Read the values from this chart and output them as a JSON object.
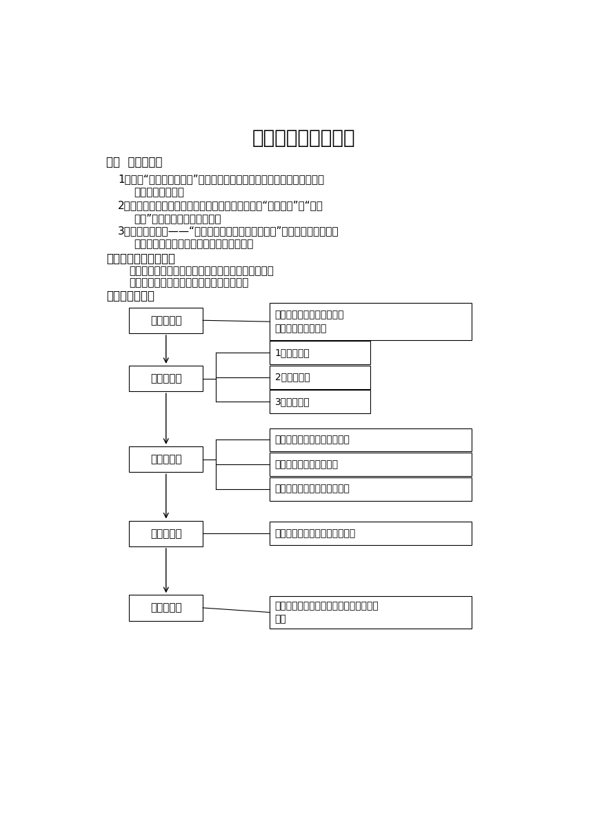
{
  "title": "西双版纳傣族自治州",
  "bg_color": "#ffffff",
  "section1_header": "一、  教学目标：",
  "section1_item1_line1": "1、通过“我要去西双版纳”活动，了解西双版纳地理位置的独特性，说出",
  "section1_item1_line2": "气候类型和特征。",
  "section1_item2_line1": "2、通过观赏视频和图文资料，知道西双版纳被称为“植物王国”和“动物",
  "section1_item2_line2": "王国”，并掌握主要的动植物。",
  "section1_item3_line1": "3、通过角色扮演——“争当西双版纳傣族自治州州长”，树立环境、资源的",
  "section1_item3_line2": "保护意识，加深对可持续发展思想的理解。",
  "section2_header": "二、教学重点、难点：",
  "section2_item1": "重点：西双版纳独特的地理位置和气候特征及影响。",
  "section2_item2": "难点：理解地理要素对生活和经济的影响。",
  "section3_header": "三、教学流程：",
  "node0": "情境导入：",
  "node1": "合作探究：",
  "node2": "走进版纳：",
  "node3": "角色扮演：",
  "node4": "延伸拓展：",
  "rbox0": "音乐《月光下的凤尾竹》、\n西双版纳的相关图片",
  "rbox1": "1、地理位置",
  "rbox2": "2、气候类型",
  "rbox3": "3、地形类型",
  "rbox4": "第一站：西双版纳勐仑植物园",
  "rbox5": "第二站：西双版纳野象谷",
  "rbox6": "第三站：西双版纳民族风情园",
  "rbox7": "我能行，西双版纳州长，让我来",
  "rbox8": "创作《请到西双版纳来》的宣传文章或手\n抄报"
}
